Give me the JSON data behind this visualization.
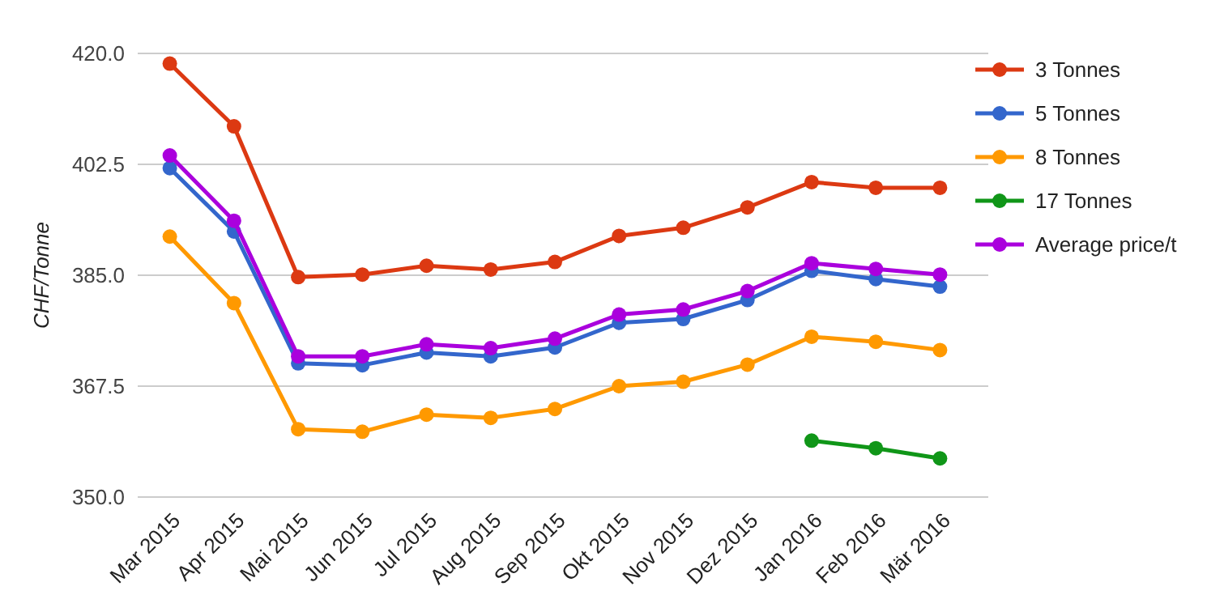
{
  "chart_data": {
    "type": "line",
    "ylabel": "CHF/Tonne",
    "categories": [
      "Mar 2015",
      "Apr 2015",
      "Mai 2015",
      "Jun 2015",
      "Jul 2015",
      "Aug 2015",
      "Sep 2015",
      "Okt 2015",
      "Nov 2015",
      "Dez 2015",
      "Jan 2016",
      "Feb 2016",
      "Mär 2016"
    ],
    "series": [
      {
        "name": "3 Tonnes",
        "color": "#dc3912",
        "values": [
          418.4,
          408.5,
          384.7,
          385.1,
          386.5,
          385.9,
          387.1,
          391.2,
          392.5,
          395.7,
          399.7,
          398.8,
          398.8
        ]
      },
      {
        "name": "5 Tonnes",
        "color": "#3366cc",
        "values": [
          401.9,
          391.9,
          371.1,
          370.8,
          372.8,
          372.2,
          373.6,
          377.5,
          378.1,
          381.1,
          385.7,
          384.4,
          383.2
        ]
      },
      {
        "name": "8 Tonnes",
        "color": "#ff9900",
        "values": [
          391.1,
          380.6,
          360.7,
          360.3,
          363.0,
          362.5,
          363.9,
          367.5,
          368.2,
          370.9,
          375.3,
          374.5,
          373.2
        ]
      },
      {
        "name": "17 Tonnes",
        "color": "#109618",
        "values": [
          null,
          null,
          null,
          null,
          null,
          null,
          null,
          null,
          null,
          null,
          358.9,
          357.7,
          356.1
        ]
      },
      {
        "name": "Average price/t",
        "color": "#aa00dd",
        "values": [
          403.9,
          393.6,
          372.2,
          372.2,
          374.1,
          373.5,
          375.0,
          378.8,
          379.6,
          382.5,
          386.9,
          386.0,
          385.1
        ]
      }
    ],
    "ylim": [
      350,
      420
    ],
    "yticks": [
      {
        "value": 350,
        "label": "350.0"
      },
      {
        "value": 367.5,
        "label": "367.5"
      },
      {
        "value": 385,
        "label": "385.0"
      },
      {
        "value": 402.5,
        "label": "402.5"
      },
      {
        "value": 420,
        "label": "420.0"
      }
    ],
    "grid": "y",
    "legend": "right",
    "marker": "circle",
    "line_style": "solid"
  }
}
